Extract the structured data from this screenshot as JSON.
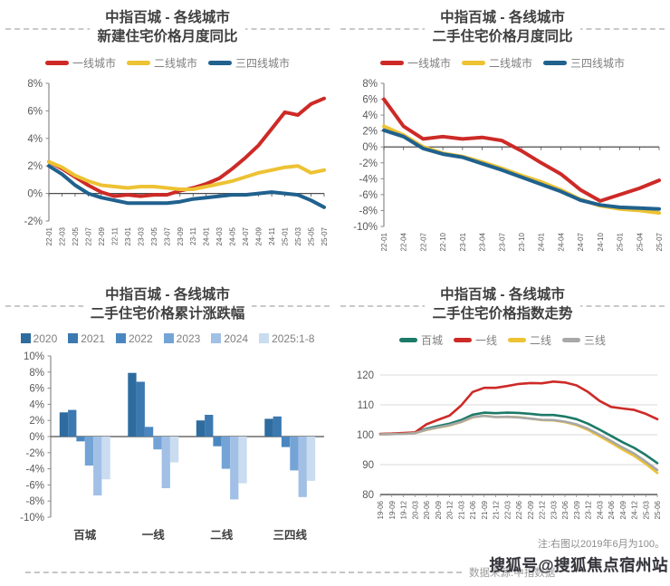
{
  "footer": {
    "note": "注:右图以2019年6月为100。",
    "source": "数据来源:中指数据",
    "watermark": "搜狐号@搜狐焦点宿州站"
  },
  "chart_data": [
    {
      "id": "new-home-price-mom-yoy",
      "type": "line",
      "title": "中指百城 - 各线城市",
      "subtitle": "新建住宅价格月度同比",
      "ylim": [
        -2,
        8
      ],
      "y_step": 2,
      "y_suffix": "%",
      "grid": false,
      "zero_axis": true,
      "zero_ticks": true,
      "left_axis": true,
      "rotate_labels": true,
      "legend_shape": "line",
      "categories": [
        "22-01",
        "22-03",
        "22-05",
        "22-07",
        "22-09",
        "22-11",
        "23-01",
        "23-03",
        "23-05",
        "23-07",
        "23-09",
        "23-11",
        "24-01",
        "24-03",
        "24-05",
        "24-07",
        "24-09",
        "24-11",
        "25-01",
        "25-03",
        "25-05",
        "25-07"
      ],
      "series": [
        {
          "name": "一线城市",
          "color": "#cd2a27",
          "values": [
            2.3,
            1.8,
            1.2,
            0.6,
            0.1,
            -0.2,
            -0.1,
            -0.2,
            -0.1,
            -0.1,
            0.2,
            0.4,
            0.7,
            1.1,
            1.8,
            2.6,
            3.5,
            4.7,
            5.9,
            5.7,
            6.5,
            6.9
          ]
        },
        {
          "name": "二线城市",
          "color": "#edc233",
          "values": [
            2.3,
            1.9,
            1.3,
            0.9,
            0.6,
            0.5,
            0.4,
            0.5,
            0.5,
            0.4,
            0.3,
            0.3,
            0.5,
            0.7,
            0.9,
            1.2,
            1.5,
            1.7,
            1.9,
            2.0,
            1.5,
            1.7
          ]
        },
        {
          "name": "三四线城市",
          "color": "#20618e",
          "values": [
            2.0,
            1.4,
            0.6,
            0.0,
            -0.3,
            -0.5,
            -0.7,
            -0.7,
            -0.7,
            -0.7,
            -0.6,
            -0.4,
            -0.3,
            -0.2,
            -0.1,
            -0.1,
            0.0,
            0.1,
            0.0,
            -0.1,
            -0.5,
            -1.0
          ]
        }
      ]
    },
    {
      "id": "second-hand-price-mom-yoy",
      "type": "line",
      "title": "中指百城 - 各线城市",
      "subtitle": "二手住宅价格月度同比",
      "ylim": [
        -10,
        8
      ],
      "y_step": 2,
      "y_suffix": "%",
      "grid": false,
      "zero_axis": true,
      "zero_ticks": true,
      "left_axis": true,
      "rotate_labels": true,
      "legend_shape": "line",
      "categories": [
        "22-01",
        "22-04",
        "22-07",
        "22-10",
        "23-01",
        "23-04",
        "23-07",
        "23-10",
        "24-01",
        "24-04",
        "24-07",
        "24-10",
        "25-01",
        "25-04",
        "25-07"
      ],
      "series": [
        {
          "name": "一线城市",
          "color": "#cd2a27",
          "values": [
            6.0,
            2.6,
            1.0,
            1.3,
            1.0,
            1.2,
            0.8,
            -0.5,
            -2.0,
            -3.4,
            -5.4,
            -6.8,
            -6.0,
            -5.2,
            -4.2
          ]
        },
        {
          "name": "二线城市",
          "color": "#edc233",
          "values": [
            2.6,
            1.5,
            0.0,
            -0.8,
            -1.2,
            -1.9,
            -2.7,
            -3.6,
            -4.4,
            -5.4,
            -6.6,
            -7.4,
            -7.8,
            -8.0,
            -8.3
          ]
        },
        {
          "name": "三四线城市",
          "color": "#20618e",
          "values": [
            2.1,
            1.3,
            -0.2,
            -0.9,
            -1.3,
            -2.1,
            -2.9,
            -3.8,
            -4.7,
            -5.6,
            -6.7,
            -7.3,
            -7.6,
            -7.7,
            -7.8
          ]
        }
      ]
    },
    {
      "id": "second-hand-cumulative-change",
      "type": "bar",
      "title": "中指百城 - 各线城市",
      "subtitle": "二手住宅价格累计涨跌幅",
      "ylim": [
        -10,
        10
      ],
      "y_step": 2,
      "y_suffix": "%",
      "grid": false,
      "zero_axis": true,
      "zero_ticks": false,
      "left_axis": true,
      "rotate_labels": false,
      "legend_shape": "square",
      "categories": [
        "百城",
        "一线",
        "二线",
        "三四线"
      ],
      "series": [
        {
          "name": "2020",
          "color": "#2e6b9e",
          "values": [
            3.0,
            7.9,
            2.0,
            2.2
          ]
        },
        {
          "name": "2021",
          "color": "#3b79b0",
          "values": [
            3.3,
            6.8,
            2.7,
            2.5
          ]
        },
        {
          "name": "2022",
          "color": "#4a87c1",
          "values": [
            -0.6,
            1.2,
            -1.2,
            -1.3
          ]
        },
        {
          "name": "2023",
          "color": "#74a4d6",
          "values": [
            -3.6,
            -1.6,
            -4.0,
            -4.2
          ]
        },
        {
          "name": "2024",
          "color": "#a2c0e5",
          "values": [
            -7.3,
            -6.4,
            -7.8,
            -7.5
          ]
        },
        {
          "name": "2025:1-8",
          "color": "#c9dcf0",
          "values": [
            -5.3,
            -3.2,
            -5.8,
            -5.5
          ]
        }
      ]
    },
    {
      "id": "second-hand-price-index-trend",
      "type": "line",
      "title": "中指百城 - 各线城市",
      "subtitle": "二手住宅价格指数走势",
      "ylim": [
        80,
        120
      ],
      "y_step": 10,
      "y_suffix": "",
      "grid": true,
      "zero_axis": false,
      "zero_ticks": false,
      "left_axis": false,
      "rotate_labels": true,
      "legend_shape": "line",
      "categories": [
        "19-06",
        "19-09",
        "19-12",
        "20-03",
        "20-06",
        "20-09",
        "20-12",
        "21-03",
        "21-06",
        "21-09",
        "21-12",
        "22-03",
        "22-06",
        "22-09",
        "22-12",
        "23-03",
        "23-06",
        "23-09",
        "23-12",
        "24-03",
        "24-06",
        "24-09",
        "24-12",
        "25-03",
        "25-06"
      ],
      "series": [
        {
          "name": "百城",
          "color": "#1c7a68",
          "values": [
            100.2,
            100.3,
            100.4,
            100.6,
            102.0,
            102.9,
            103.7,
            104.9,
            106.7,
            107.4,
            107.2,
            107.4,
            107.3,
            107.0,
            106.6,
            106.6,
            106.1,
            105.2,
            103.7,
            101.7,
            99.6,
            97.5,
            95.6,
            93.2,
            90.5
          ]
        },
        {
          "name": "一线",
          "color": "#cd2a27",
          "values": [
            100.3,
            100.4,
            100.6,
            100.8,
            103.5,
            105.0,
            106.4,
            109.8,
            114.3,
            115.7,
            115.7,
            116.3,
            117.0,
            117.3,
            117.2,
            117.8,
            117.5,
            116.5,
            114.3,
            111.3,
            109.3,
            108.8,
            108.3,
            107.0,
            105.2
          ]
        },
        {
          "name": "二线",
          "color": "#edc233",
          "values": [
            100.1,
            100.2,
            100.3,
            100.5,
            101.6,
            102.4,
            103.1,
            104.2,
            105.8,
            106.4,
            105.9,
            106.0,
            105.9,
            105.4,
            104.9,
            104.8,
            104.2,
            103.2,
            101.6,
            99.5,
            97.3,
            95.0,
            92.9,
            90.2,
            87.2
          ]
        },
        {
          "name": "三线",
          "color": "#a8a8a8",
          "values": [
            100.1,
            100.2,
            100.3,
            100.5,
            101.7,
            102.5,
            103.2,
            104.3,
            105.9,
            106.3,
            105.9,
            106.0,
            105.8,
            105.4,
            105.0,
            104.9,
            104.4,
            103.5,
            102.0,
            100.0,
            97.9,
            95.7,
            93.7,
            91.0,
            88.2
          ]
        }
      ]
    }
  ]
}
